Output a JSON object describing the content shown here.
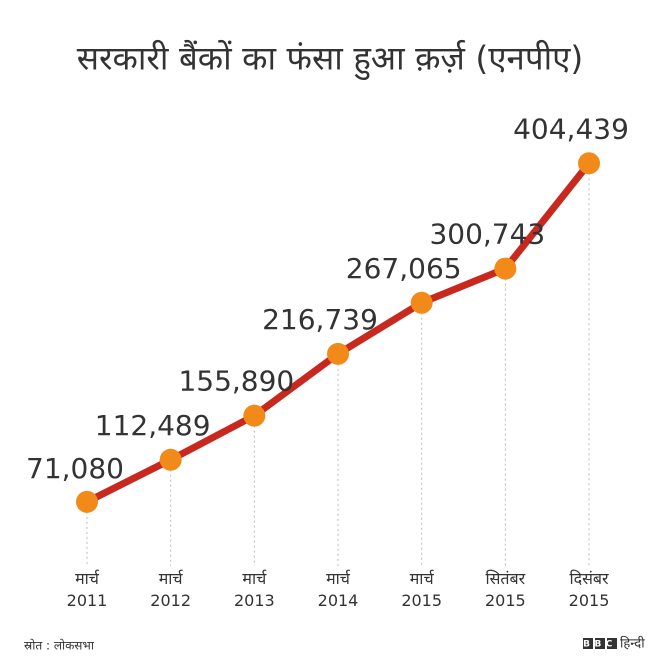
{
  "chart_data": {
    "type": "line",
    "title": "सरकारी बैंकों का फंसा हुआ क़र्ज़ (एनपीए)",
    "categories": [
      "मार्च 2011",
      "मार्च 2012",
      "मार्च 2013",
      "मार्च 2014",
      "मार्च 2015",
      "सितंबर 2015",
      "दिसंबर 2015"
    ],
    "series": [
      {
        "color": "#c8281e",
        "marker_color": "#f28a1a",
        "values": [
          71080,
          112489,
          155890,
          216739,
          267065,
          300743,
          404439
        ],
        "value_labels": [
          "71,080",
          "112,489",
          "155,890",
          "216,739",
          "267,065",
          "300,743",
          "404,439"
        ]
      }
    ],
    "ylim": [
      0,
      450000
    ],
    "source": "स्रोत : लोकसभा",
    "logo": {
      "brand": "BBC",
      "text": "हिन्दी"
    }
  }
}
